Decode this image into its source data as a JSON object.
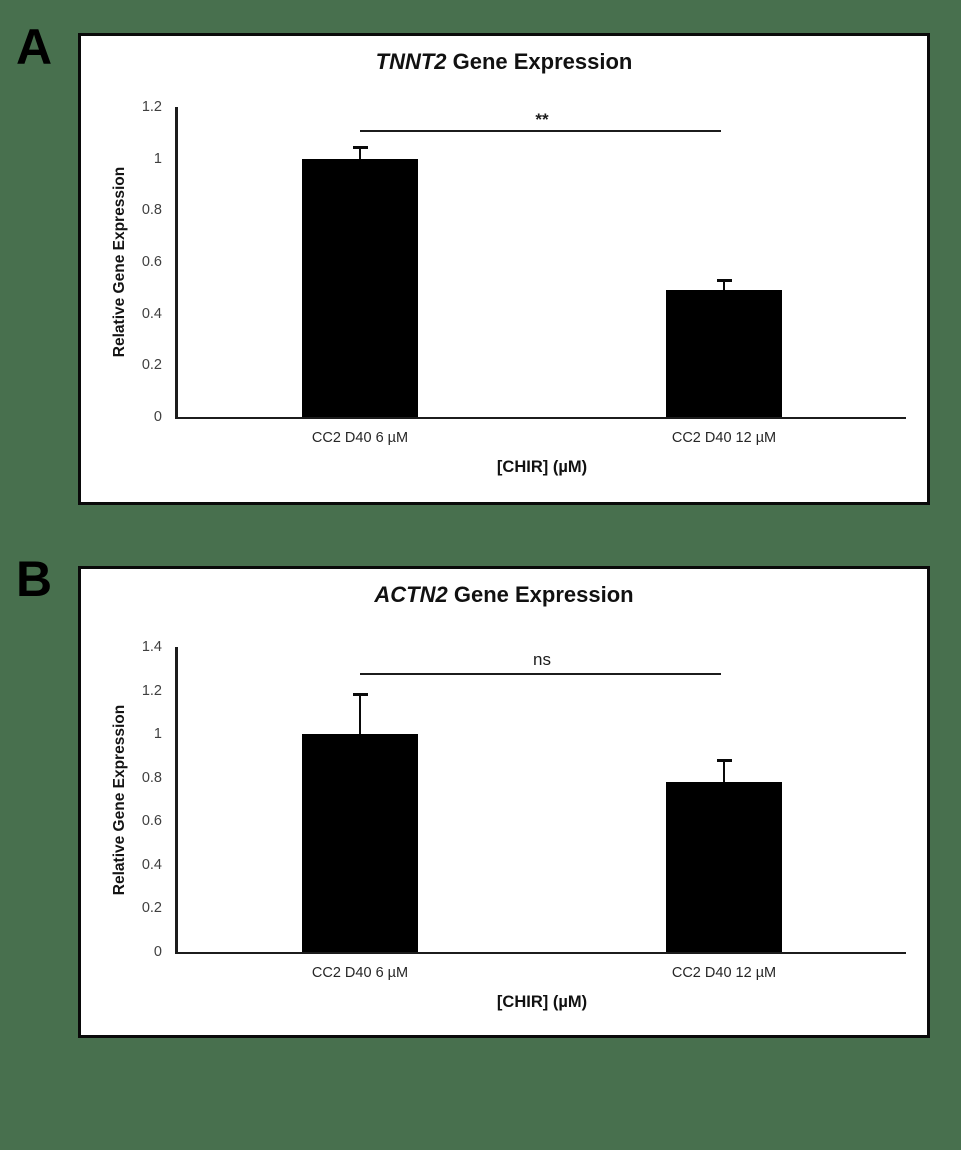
{
  "page": {
    "background_color": "#48704E"
  },
  "panels": [
    {
      "label": "A"
    },
    {
      "label": "B"
    }
  ],
  "chart_data": [
    {
      "type": "bar",
      "title": "TNNT2 Gene Expression",
      "title_italic_part": "TNNT2",
      "title_regular_part": " Gene Expression",
      "categories": [
        "CC2 D40 6 µM",
        "CC2 D40 12 µM"
      ],
      "values": [
        1.0,
        0.49
      ],
      "errors": [
        0.045,
        0.04
      ],
      "xlabel": "[CHIR] (µM)",
      "ylabel": "Relative Gene Expression",
      "ylim": [
        0,
        1.2
      ],
      "yticks": [
        0,
        0.2,
        0.4,
        0.6,
        0.8,
        1,
        1.2
      ],
      "bar_color": "#000000",
      "bar_centers_pct": [
        25,
        75
      ],
      "bar_width_pct": 15.8,
      "significance": {
        "label": "**",
        "line_y": 1.11
      },
      "grid": false,
      "legend": false
    },
    {
      "type": "bar",
      "title": "ACTN2 Gene Expression",
      "title_italic_part": "ACTN2",
      "title_regular_part": " Gene Expression",
      "categories": [
        "CC2 D40 6 µM",
        "CC2 D40 12 µM"
      ],
      "values": [
        1.0,
        0.78
      ],
      "errors": [
        0.18,
        0.1
      ],
      "xlabel": "[CHIR] (µM)",
      "ylabel": "Relative Gene Expression",
      "ylim": [
        0,
        1.4
      ],
      "yticks": [
        0,
        0.2,
        0.4,
        0.6,
        0.8,
        1,
        1.2,
        1.4
      ],
      "bar_color": "#000000",
      "bar_centers_pct": [
        25,
        75
      ],
      "bar_width_pct": 15.8,
      "significance": {
        "label": "ns",
        "line_y": 1.28
      },
      "grid": false,
      "legend": false
    }
  ]
}
